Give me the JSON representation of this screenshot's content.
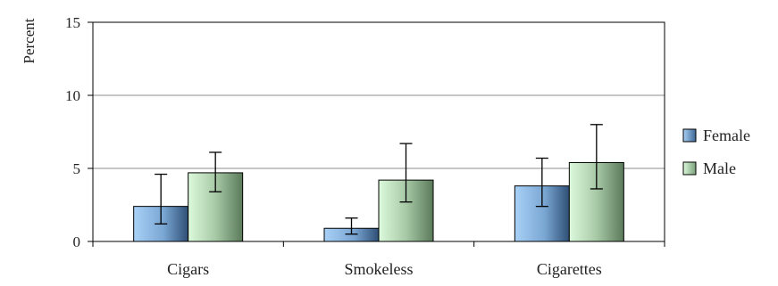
{
  "chart_data": {
    "type": "bar",
    "title": "",
    "xlabel": "",
    "ylabel": "Percent",
    "ylim": [
      0,
      15
    ],
    "yticks": [
      0,
      5,
      10,
      15
    ],
    "grid": true,
    "legend_position": "right",
    "categories": [
      "Cigars",
      "Smokeless",
      "Cigarettes"
    ],
    "series": [
      {
        "name": "Female",
        "color": "#8fbce8",
        "values": [
          2.4,
          0.9,
          3.8
        ],
        "error_low": [
          1.2,
          0.5,
          2.4
        ],
        "error_high": [
          4.6,
          1.6,
          5.7
        ]
      },
      {
        "name": "Male",
        "color": "#c8f0c8",
        "values": [
          4.7,
          4.2,
          5.4
        ],
        "error_low": [
          3.4,
          2.7,
          3.6
        ],
        "error_high": [
          6.1,
          6.7,
          8.0
        ]
      }
    ]
  }
}
